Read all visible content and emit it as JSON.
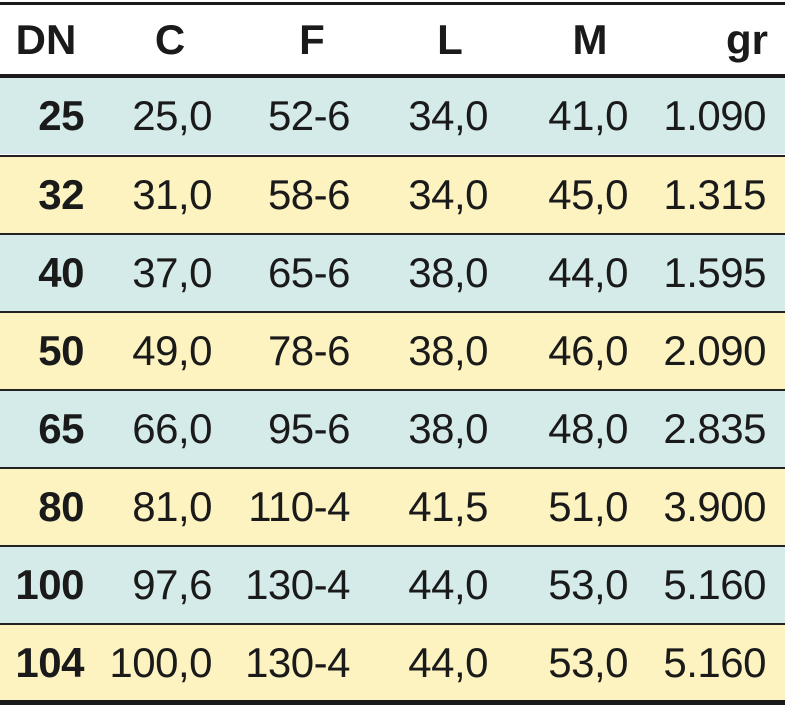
{
  "colors": {
    "blue_row": "#d4ebe9",
    "yellow_row": "#fcf3c0",
    "rule": "#1a1a1a"
  },
  "table": {
    "headers": [
      "DN",
      "C",
      "F",
      "L",
      "M",
      "gr"
    ],
    "rows": [
      [
        "25",
        "25,0",
        "52-6",
        "34,0",
        "41,0",
        "1.090"
      ],
      [
        "32",
        "31,0",
        "58-6",
        "34,0",
        "45,0",
        "1.315"
      ],
      [
        "40",
        "37,0",
        "65-6",
        "38,0",
        "44,0",
        "1.595"
      ],
      [
        "50",
        "49,0",
        "78-6",
        "38,0",
        "46,0",
        "2.090"
      ],
      [
        "65",
        "66,0",
        "95-6",
        "38,0",
        "48,0",
        "2.835"
      ],
      [
        "80",
        "81,0",
        "110-4",
        "41,5",
        "51,0",
        "3.900"
      ],
      [
        "100",
        "97,6",
        "130-4",
        "44,0",
        "53,0",
        "5.160"
      ],
      [
        "104",
        "100,0",
        "130-4",
        "44,0",
        "53,0",
        "5.160"
      ]
    ]
  }
}
